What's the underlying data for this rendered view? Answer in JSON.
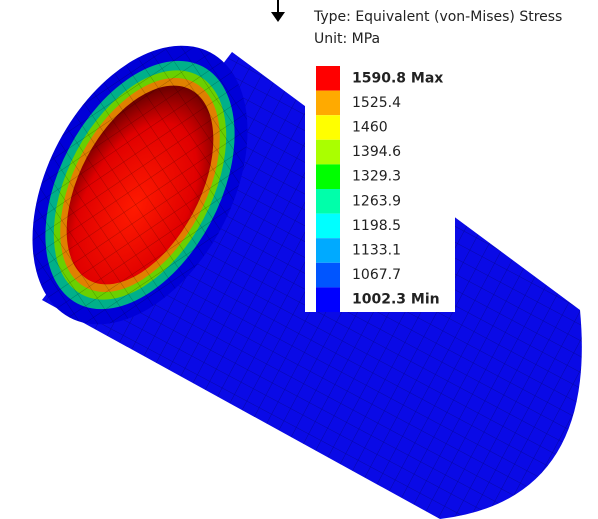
{
  "legend": {
    "type_line": "Type: Equivalent (von-Mises) Stress",
    "unit_line": "Unit: MPa",
    "items": [
      {
        "label": "1590.8 Max",
        "color": "#ff0000",
        "bold": true
      },
      {
        "label": "1525.4",
        "color": "#ffaa00",
        "bold": false
      },
      {
        "label": "1460",
        "color": "#ffff00",
        "bold": false
      },
      {
        "label": "1394.6",
        "color": "#aaff00",
        "bold": false
      },
      {
        "label": "1329.3",
        "color": "#00ff00",
        "bold": false
      },
      {
        "label": "1263.9",
        "color": "#00ffaa",
        "bold": false
      },
      {
        "label": "1198.5",
        "color": "#00ffff",
        "bold": false
      },
      {
        "label": "1133.1",
        "color": "#00aaff",
        "bold": false
      },
      {
        "label": "1067.7",
        "color": "#0055ff",
        "bold": false
      },
      {
        "label": "1002.3 Min",
        "color": "#0000ff",
        "bold": true
      }
    ]
  }
}
